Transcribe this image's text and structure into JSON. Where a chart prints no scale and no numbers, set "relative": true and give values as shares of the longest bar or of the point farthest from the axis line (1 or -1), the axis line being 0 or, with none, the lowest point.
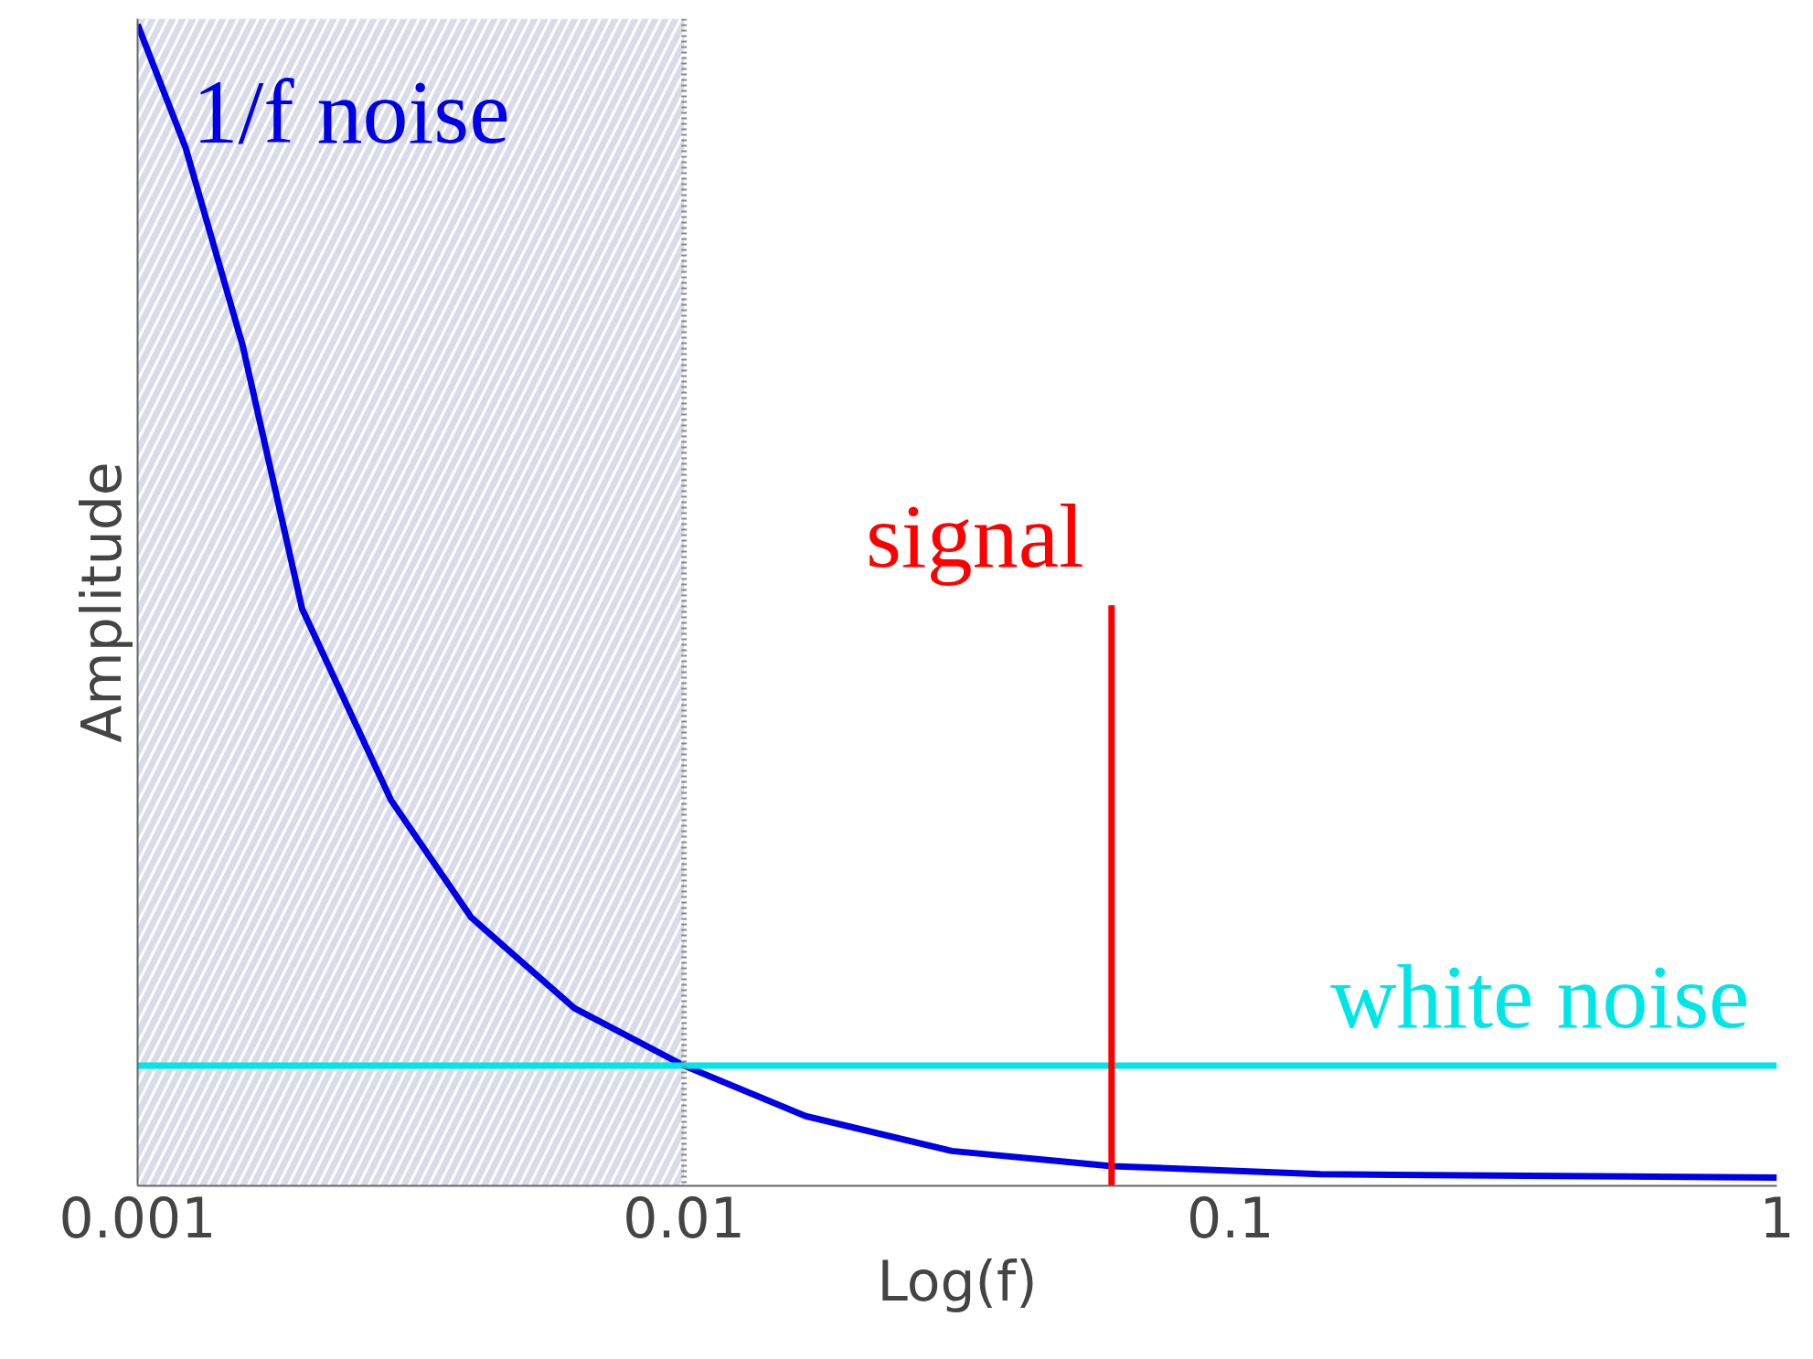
{
  "chart_data": {
    "type": "line",
    "relative": true,
    "log": "x",
    "xlabel": "Log(f)",
    "ylabel": "Amplitude",
    "xlim": [
      0.001,
      1
    ],
    "xticks": [
      0.001,
      0.01,
      0.1,
      1
    ],
    "grid": false,
    "series": [
      {
        "name": "1/f noise",
        "color": "#0000e6",
        "x": [
          0.001,
          0.001224,
          0.001556,
          0.002,
          0.00291,
          0.00408,
          0.0063,
          0.01,
          0.0167,
          0.0309,
          0.0606,
          0.146,
          1
        ],
        "values": [
          1.0,
          0.894,
          0.724,
          0.497,
          0.332,
          0.231,
          0.153,
          0.1035,
          0.06,
          0.03,
          0.017,
          0.01,
          0.007
        ]
      },
      {
        "name": "white noise",
        "color": "#00e5e5",
        "x": [
          0.001,
          1
        ],
        "values": [
          0.1035,
          0.1035
        ]
      },
      {
        "name": "signal",
        "color": "#ff0000",
        "x": [
          0.0606,
          0.0606
        ],
        "values": [
          0,
          0.5
        ]
      }
    ],
    "bands": [
      {
        "axis": "x",
        "from": 0.001,
        "to": 0.01,
        "color": "#d9dce8"
      }
    ],
    "ref_lines": [
      {
        "axis": "x",
        "value": 0.01,
        "color": "#888888",
        "line_style": "dotted"
      }
    ]
  }
}
